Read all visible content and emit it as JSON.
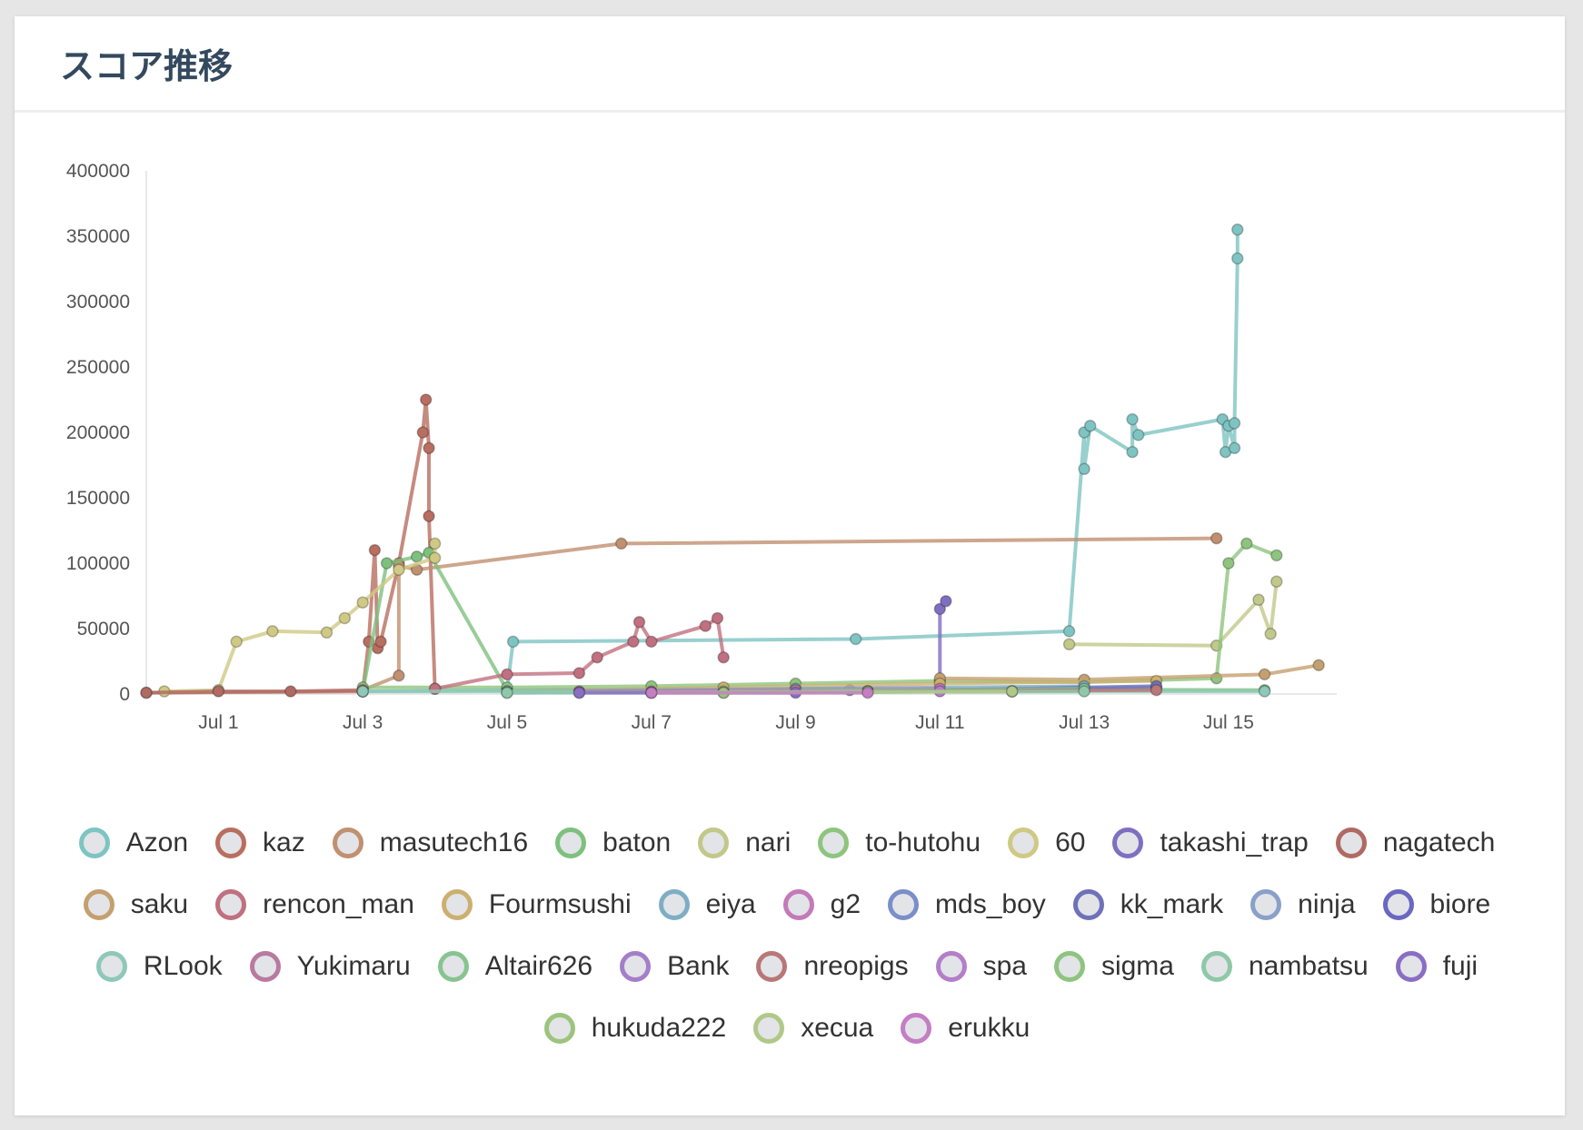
{
  "card": {
    "title": "スコア推移"
  },
  "chart_data": {
    "type": "line",
    "title": "スコア推移",
    "xlabel": "",
    "ylabel": "",
    "ylim": [
      0,
      400000
    ],
    "xlim": [
      "2019-06-30",
      "2019-07-16T12:00"
    ],
    "y_ticks": [
      "0",
      "50000",
      "100000",
      "150000",
      "200000",
      "250000",
      "300000",
      "350000",
      "400000"
    ],
    "x_ticks": [
      {
        "label": "Jul 1",
        "date": "2019-07-01"
      },
      {
        "label": "Jul 3",
        "date": "2019-07-03"
      },
      {
        "label": "Jul 5",
        "date": "2019-07-05"
      },
      {
        "label": "Jul 7",
        "date": "2019-07-07"
      },
      {
        "label": "Jul 9",
        "date": "2019-07-09"
      },
      {
        "label": "Jul 11",
        "date": "2019-07-11"
      },
      {
        "label": "Jul 13",
        "date": "2019-07-13"
      },
      {
        "label": "Jul 15",
        "date": "2019-07-15"
      }
    ],
    "grid": false,
    "legend_position": "bottom",
    "series": [
      {
        "name": "Azon",
        "color": "#7ec4c2",
        "points": [
          [
            "2019-07-03T00:00",
            2000
          ],
          [
            "2019-07-05T00:00",
            3000
          ],
          [
            "2019-07-05T02:00",
            40000
          ],
          [
            "2019-07-09T20:00",
            42000
          ],
          [
            "2019-07-12T19:00",
            48000
          ],
          [
            "2019-07-13T00:00",
            200000
          ],
          [
            "2019-07-13T00:00",
            172000
          ],
          [
            "2019-07-13T02:00",
            205000
          ],
          [
            "2019-07-13T16:00",
            185000
          ],
          [
            "2019-07-13T16:00",
            210000
          ],
          [
            "2019-07-13T18:00",
            198000
          ],
          [
            "2019-07-14T22:00",
            210000
          ],
          [
            "2019-07-14T23:00",
            185000
          ],
          [
            "2019-07-15T00:00",
            205000
          ],
          [
            "2019-07-15T02:00",
            188000
          ],
          [
            "2019-07-15T02:00",
            207000
          ],
          [
            "2019-07-15T03:00",
            333000
          ],
          [
            "2019-07-15T03:00",
            355000
          ]
        ]
      },
      {
        "name": "kaz",
        "color": "#b86e60",
        "points": [
          [
            "2019-06-30T00:00",
            1000
          ],
          [
            "2019-07-03T00:00",
            2000
          ],
          [
            "2019-07-03T02:00",
            40000
          ],
          [
            "2019-07-03T04:00",
            110000
          ],
          [
            "2019-07-03T05:00",
            35000
          ],
          [
            "2019-07-03T06:00",
            40000
          ],
          [
            "2019-07-03T12:00",
            100000
          ],
          [
            "2019-07-03T20:00",
            200000
          ],
          [
            "2019-07-03T21:00",
            225000
          ],
          [
            "2019-07-03T22:00",
            188000
          ],
          [
            "2019-07-03T22:00",
            136000
          ],
          [
            "2019-07-04T00:00",
            4000
          ]
        ]
      },
      {
        "name": "masutech16",
        "color": "#c09070",
        "points": [
          [
            "2019-07-03T00:00",
            3000
          ],
          [
            "2019-07-03T12:00",
            14000
          ],
          [
            "2019-07-03T12:00",
            98000
          ],
          [
            "2019-07-03T18:00",
            95000
          ],
          [
            "2019-07-06T14:00",
            115000
          ],
          [
            "2019-07-14T20:00",
            119000
          ]
        ]
      },
      {
        "name": "baton",
        "color": "#7ec07e",
        "points": [
          [
            "2019-07-03T00:00",
            2000
          ],
          [
            "2019-07-03T08:00",
            100000
          ],
          [
            "2019-07-03T18:00",
            105000
          ],
          [
            "2019-07-03T22:00",
            108000
          ],
          [
            "2019-07-05T00:00",
            3000
          ],
          [
            "2019-07-09T00:00",
            4000
          ],
          [
            "2019-07-15T12:00",
            3000
          ]
        ]
      },
      {
        "name": "nari",
        "color": "#c2c889",
        "points": [
          [
            "2019-07-12T19:00",
            38000
          ],
          [
            "2019-07-14T20:00",
            37000
          ],
          [
            "2019-07-15T10:00",
            72000
          ],
          [
            "2019-07-15T14:00",
            46000
          ],
          [
            "2019-07-15T16:00",
            86000
          ]
        ]
      },
      {
        "name": "to-hutohu",
        "color": "#8ec47e",
        "points": [
          [
            "2019-07-03T00:00",
            5000
          ],
          [
            "2019-07-05T00:00",
            5000
          ],
          [
            "2019-07-07T00:00",
            6000
          ],
          [
            "2019-07-09T00:00",
            8000
          ],
          [
            "2019-07-11T00:00",
            10000
          ],
          [
            "2019-07-13T00:00",
            9000
          ],
          [
            "2019-07-14T20:00",
            12000
          ],
          [
            "2019-07-15T00:00",
            100000
          ],
          [
            "2019-07-15T06:00",
            115000
          ],
          [
            "2019-07-15T16:00",
            106000
          ]
        ]
      },
      {
        "name": "60",
        "color": "#cfc985",
        "points": [
          [
            "2019-06-30T06:00",
            2000
          ],
          [
            "2019-07-01T00:00",
            3000
          ],
          [
            "2019-07-01T06:00",
            40000
          ],
          [
            "2019-07-01T18:00",
            48000
          ],
          [
            "2019-07-02T12:00",
            47000
          ],
          [
            "2019-07-02T18:00",
            58000
          ],
          [
            "2019-07-03T00:00",
            70000
          ],
          [
            "2019-07-03T12:00",
            95000
          ],
          [
            "2019-07-04T00:00",
            104000
          ],
          [
            "2019-07-04T00:00",
            115000
          ]
        ]
      },
      {
        "name": "takashi_trap",
        "color": "#7f6fc0",
        "points": [
          [
            "2019-07-09T18:00",
            3000
          ],
          [
            "2019-07-11T00:00",
            4000
          ],
          [
            "2019-07-11T00:00",
            65000
          ],
          [
            "2019-07-11T02:00",
            71000
          ]
        ]
      },
      {
        "name": "nagatech",
        "color": "#b06a62",
        "points": [
          [
            "2019-06-30T00:00",
            1000
          ],
          [
            "2019-07-01T00:00",
            2000
          ],
          [
            "2019-07-02T00:00",
            2000
          ],
          [
            "2019-07-03T00:00",
            3000
          ]
        ]
      },
      {
        "name": "saku",
        "color": "#c4a070",
        "points": [
          [
            "2019-07-11T00:00",
            12000
          ],
          [
            "2019-07-13T00:00",
            11000
          ],
          [
            "2019-07-15T12:00",
            15000
          ],
          [
            "2019-07-16T06:00",
            22000
          ]
        ]
      },
      {
        "name": "rencon_man",
        "color": "#c07080",
        "points": [
          [
            "2019-07-04T00:00",
            4000
          ],
          [
            "2019-07-05T00:00",
            15000
          ],
          [
            "2019-07-06T00:00",
            16000
          ],
          [
            "2019-07-06T06:00",
            28000
          ],
          [
            "2019-07-06T18:00",
            40000
          ],
          [
            "2019-07-06T20:00",
            55000
          ],
          [
            "2019-07-07T00:00",
            40000
          ],
          [
            "2019-07-07T18:00",
            52000
          ],
          [
            "2019-07-07T22:00",
            58000
          ],
          [
            "2019-07-08T00:00",
            28000
          ]
        ]
      },
      {
        "name": "Fourmsushi",
        "color": "#cbb070",
        "points": [
          [
            "2019-07-05T00:00",
            2000
          ],
          [
            "2019-07-08T00:00",
            5000
          ],
          [
            "2019-07-11T00:00",
            8000
          ],
          [
            "2019-07-14T00:00",
            10000
          ]
        ]
      },
      {
        "name": "eiya",
        "color": "#7eaec4",
        "points": [
          [
            "2019-07-05T00:00",
            2000
          ],
          [
            "2019-07-09T00:00",
            4000
          ],
          [
            "2019-07-13T00:00",
            6000
          ]
        ]
      },
      {
        "name": "g2",
        "color": "#c47ab8",
        "points": [
          [
            "2019-07-07T00:00",
            2000
          ],
          [
            "2019-07-11T00:00",
            4000
          ]
        ]
      },
      {
        "name": "mds_boy",
        "color": "#7a8ec8",
        "points": [
          [
            "2019-07-09T00:00",
            2000
          ],
          [
            "2019-07-14T00:00",
            5000
          ]
        ]
      },
      {
        "name": "kk_mark",
        "color": "#6f72b8",
        "points": [
          [
            "2019-07-10T00:00",
            2000
          ],
          [
            "2019-07-14T00:00",
            6000
          ]
        ]
      },
      {
        "name": "ninja",
        "color": "#8aa0c8",
        "points": [
          [
            "2019-07-05T00:00",
            1000
          ],
          [
            "2019-07-12T00:00",
            2000
          ]
        ]
      },
      {
        "name": "biore",
        "color": "#6a68c0",
        "points": [
          [
            "2019-07-09T00:00",
            2000
          ],
          [
            "2019-07-13T00:00",
            3000
          ]
        ]
      },
      {
        "name": "RLook",
        "color": "#8ec8b8",
        "points": [
          [
            "2019-07-03T00:00",
            2000
          ],
          [
            "2019-07-15T12:00",
            2000
          ]
        ]
      },
      {
        "name": "Yukimaru",
        "color": "#b87aa0",
        "points": [
          [
            "2019-07-06T00:00",
            2000
          ],
          [
            "2019-07-09T00:00",
            3000
          ]
        ]
      },
      {
        "name": "Altair626",
        "color": "#88c490",
        "points": [
          [
            "2019-07-08T00:00",
            2000
          ],
          [
            "2019-07-13T00:00",
            4000
          ]
        ]
      },
      {
        "name": "Bank",
        "color": "#a47ec8",
        "points": [
          [
            "2019-07-06T00:00",
            1000
          ],
          [
            "2019-07-10T00:00",
            2000
          ]
        ]
      },
      {
        "name": "nreopigs",
        "color": "#b87878",
        "points": [
          [
            "2019-07-10T00:00",
            2000
          ],
          [
            "2019-07-14T00:00",
            3000
          ]
        ]
      },
      {
        "name": "spa",
        "color": "#b47ec8",
        "points": [
          [
            "2019-07-07T00:00",
            1000
          ],
          [
            "2019-07-11T00:00",
            2000
          ]
        ]
      },
      {
        "name": "sigma",
        "color": "#8ec480",
        "points": [
          [
            "2019-07-08T00:00",
            1000
          ],
          [
            "2019-07-12T00:00",
            2000
          ]
        ]
      },
      {
        "name": "nambatsu",
        "color": "#8ec8a8",
        "points": [
          [
            "2019-07-05T00:00",
            1000
          ],
          [
            "2019-07-13T00:00",
            2000
          ]
        ]
      },
      {
        "name": "fuji",
        "color": "#8a6ec4",
        "points": [
          [
            "2019-07-06T00:00",
            1000
          ],
          [
            "2019-07-09T00:00",
            1000
          ]
        ]
      },
      {
        "name": "hukuda222",
        "color": "#9cc47e",
        "points": [
          [
            "2019-07-08T00:00",
            1000
          ],
          [
            "2019-07-10T00:00",
            2000
          ]
        ]
      },
      {
        "name": "xecua",
        "color": "#b0c888",
        "points": [
          [
            "2019-07-07T00:00",
            1000
          ],
          [
            "2019-07-12T00:00",
            2000
          ]
        ]
      },
      {
        "name": "erukku",
        "color": "#c47ec4",
        "points": [
          [
            "2019-07-07T00:00",
            1000
          ],
          [
            "2019-07-10T00:00",
            1000
          ]
        ]
      }
    ]
  }
}
